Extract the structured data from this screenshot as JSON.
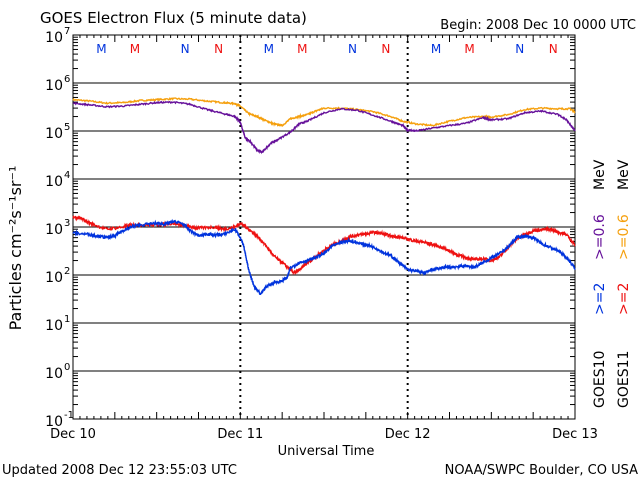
{
  "header": {
    "title": "GOES Electron Flux (5 minute data)",
    "begin": "Begin: 2008 Dec 10 0000 UTC"
  },
  "footer": {
    "updated": "Updated 2008 Dec 12 23:55:03 UTC",
    "credit": "NOAA/SWPC Boulder, CO USA"
  },
  "colors": {
    "goes10_high": "#0033dd",
    "goes10_low": "#66119a",
    "goes11_high": "#ee1111",
    "goes11_low": "#f5a00e",
    "marker_m": "#0033dd",
    "marker_m2": "#ee1111",
    "marker_n": "#0033dd",
    "marker_n2": "#ee1111"
  },
  "legend": {
    "goes10": "GOES10",
    "goes11": "GOES11",
    "g10_high": ">=2",
    "g10_low": ">=0.6",
    "g11_high": ">=2",
    "g11_low": ">=0.6",
    "unit": "MeV"
  },
  "markers": [
    {
      "day": 0.17,
      "label": "M",
      "color": "marker_m"
    },
    {
      "day": 0.37,
      "label": "M",
      "color": "marker_m2"
    },
    {
      "day": 0.67,
      "label": "N",
      "color": "marker_n"
    },
    {
      "day": 0.87,
      "label": "N",
      "color": "marker_n2"
    },
    {
      "day": 1.17,
      "label": "M",
      "color": "marker_m"
    },
    {
      "day": 1.37,
      "label": "M",
      "color": "marker_m2"
    },
    {
      "day": 1.67,
      "label": "N",
      "color": "marker_n"
    },
    {
      "day": 1.87,
      "label": "N",
      "color": "marker_n2"
    },
    {
      "day": 2.17,
      "label": "M",
      "color": "marker_m"
    },
    {
      "day": 2.37,
      "label": "M",
      "color": "marker_m2"
    },
    {
      "day": 2.67,
      "label": "N",
      "color": "marker_n"
    },
    {
      "day": 2.87,
      "label": "N",
      "color": "marker_n2"
    }
  ],
  "chart_data": {
    "type": "line",
    "title": "GOES Electron Flux (5 minute data)",
    "xlabel": "Universal Time",
    "ylabel": "Particles cm⁻²s⁻¹sr⁻¹",
    "y_scale": "log",
    "ylim": [
      0.1,
      10000000
    ],
    "xlim": [
      0,
      3
    ],
    "x_ticks": [
      {
        "day": 0,
        "label": "Dec 10"
      },
      {
        "day": 1,
        "label": "Dec 11"
      },
      {
        "day": 2,
        "label": "Dec 12"
      },
      {
        "day": 3,
        "label": "Dec 13"
      }
    ],
    "y_ticks": [
      {
        "value": 10000000,
        "base": "10",
        "exp": "7"
      },
      {
        "value": 1000000,
        "base": "10",
        "exp": "6"
      },
      {
        "value": 100000,
        "base": "10",
        "exp": "5"
      },
      {
        "value": 10000,
        "base": "10",
        "exp": "4"
      },
      {
        "value": 1000,
        "base": "10",
        "exp": "3"
      },
      {
        "value": 100,
        "base": "10",
        "exp": "2"
      },
      {
        "value": 10,
        "base": "10",
        "exp": "1"
      },
      {
        "value": 1,
        "base": "10",
        "exp": "0"
      },
      {
        "value": 0.1,
        "base": "10",
        "exp": "-1"
      }
    ],
    "threshold": 1000,
    "grid": "horizontal decade lines",
    "series": [
      {
        "name": "GOES11 >=0.6 MeV",
        "color_key": "goes11_low",
        "points": [
          [
            0,
            450000
          ],
          [
            0.1,
            420000
          ],
          [
            0.2,
            380000
          ],
          [
            0.3,
            390000
          ],
          [
            0.4,
            430000
          ],
          [
            0.5,
            450000
          ],
          [
            0.6,
            470000
          ],
          [
            0.7,
            460000
          ],
          [
            0.8,
            420000
          ],
          [
            0.9,
            390000
          ],
          [
            0.97,
            370000
          ],
          [
            1.0,
            330000
          ],
          [
            1.05,
            230000
          ],
          [
            1.1,
            200000
          ],
          [
            1.15,
            165000
          ],
          [
            1.2,
            140000
          ],
          [
            1.25,
            130000
          ],
          [
            1.3,
            180000
          ],
          [
            1.35,
            200000
          ],
          [
            1.4,
            220000
          ],
          [
            1.45,
            260000
          ],
          [
            1.5,
            300000
          ],
          [
            1.6,
            300000
          ],
          [
            1.7,
            280000
          ],
          [
            1.8,
            250000
          ],
          [
            1.9,
            200000
          ],
          [
            1.97,
            160000
          ],
          [
            2.05,
            140000
          ],
          [
            2.15,
            130000
          ],
          [
            2.25,
            160000
          ],
          [
            2.35,
            190000
          ],
          [
            2.45,
            200000
          ],
          [
            2.5,
            195000
          ],
          [
            2.6,
            220000
          ],
          [
            2.7,
            280000
          ],
          [
            2.8,
            300000
          ],
          [
            2.9,
            290000
          ],
          [
            2.97,
            290000
          ],
          [
            3.0,
            250000
          ]
        ]
      },
      {
        "name": "GOES10 >=0.6 MeV",
        "color_key": "goes10_low",
        "points": [
          [
            0,
            380000
          ],
          [
            0.1,
            350000
          ],
          [
            0.2,
            320000
          ],
          [
            0.3,
            330000
          ],
          [
            0.4,
            360000
          ],
          [
            0.5,
            390000
          ],
          [
            0.6,
            400000
          ],
          [
            0.7,
            360000
          ],
          [
            0.8,
            280000
          ],
          [
            0.9,
            230000
          ],
          [
            0.97,
            200000
          ],
          [
            1.0,
            150000
          ],
          [
            1.03,
            70000
          ],
          [
            1.06,
            60000
          ],
          [
            1.1,
            40000
          ],
          [
            1.13,
            36000
          ],
          [
            1.18,
            55000
          ],
          [
            1.22,
            65000
          ],
          [
            1.3,
            95000
          ],
          [
            1.35,
            140000
          ],
          [
            1.4,
            160000
          ],
          [
            1.5,
            240000
          ],
          [
            1.6,
            290000
          ],
          [
            1.7,
            270000
          ],
          [
            1.8,
            210000
          ],
          [
            1.9,
            160000
          ],
          [
            1.97,
            130000
          ],
          [
            2.0,
            105000
          ],
          [
            2.05,
            100000
          ],
          [
            2.15,
            115000
          ],
          [
            2.25,
            130000
          ],
          [
            2.35,
            145000
          ],
          [
            2.45,
            190000
          ],
          [
            2.5,
            170000
          ],
          [
            2.6,
            180000
          ],
          [
            2.7,
            240000
          ],
          [
            2.8,
            260000
          ],
          [
            2.9,
            220000
          ],
          [
            2.95,
            170000
          ],
          [
            3.0,
            100000
          ]
        ]
      },
      {
        "name": "GOES11 >=2 MeV",
        "color_key": "goes11_high",
        "points": [
          [
            0,
            1600
          ],
          [
            0.05,
            1500
          ],
          [
            0.1,
            1200
          ],
          [
            0.2,
            900
          ],
          [
            0.3,
            1000
          ],
          [
            0.35,
            1100
          ],
          [
            0.4,
            1100
          ],
          [
            0.5,
            1100
          ],
          [
            0.6,
            1200
          ],
          [
            0.65,
            1100
          ],
          [
            0.7,
            1000
          ],
          [
            0.75,
            950
          ],
          [
            0.85,
            1000
          ],
          [
            0.9,
            900
          ],
          [
            0.97,
            1000
          ],
          [
            1.0,
            1200
          ],
          [
            1.05,
            900
          ],
          [
            1.1,
            650
          ],
          [
            1.15,
            420
          ],
          [
            1.2,
            250
          ],
          [
            1.25,
            180
          ],
          [
            1.3,
            130
          ],
          [
            1.32,
            110
          ],
          [
            1.35,
            125
          ],
          [
            1.4,
            180
          ],
          [
            1.45,
            240
          ],
          [
            1.5,
            330
          ],
          [
            1.55,
            420
          ],
          [
            1.6,
            500
          ],
          [
            1.65,
            620
          ],
          [
            1.7,
            680
          ],
          [
            1.75,
            720
          ],
          [
            1.8,
            780
          ],
          [
            1.85,
            730
          ],
          [
            1.9,
            650
          ],
          [
            1.95,
            620
          ],
          [
            2.0,
            560
          ],
          [
            2.05,
            510
          ],
          [
            2.1,
            480
          ],
          [
            2.15,
            430
          ],
          [
            2.2,
            380
          ],
          [
            2.25,
            320
          ],
          [
            2.3,
            260
          ],
          [
            2.35,
            230
          ],
          [
            2.4,
            210
          ],
          [
            2.45,
            220
          ],
          [
            2.5,
            200
          ],
          [
            2.55,
            240
          ],
          [
            2.6,
            380
          ],
          [
            2.65,
            560
          ],
          [
            2.7,
            700
          ],
          [
            2.75,
            830
          ],
          [
            2.8,
            880
          ],
          [
            2.85,
            900
          ],
          [
            2.9,
            780
          ],
          [
            2.95,
            700
          ],
          [
            3.0,
            420
          ]
        ]
      },
      {
        "name": "GOES10 >=2 MeV",
        "color_key": "goes10_high",
        "points": [
          [
            0,
            750
          ],
          [
            0.1,
            700
          ],
          [
            0.15,
            650
          ],
          [
            0.2,
            600
          ],
          [
            0.25,
            650
          ],
          [
            0.3,
            850
          ],
          [
            0.35,
            1000
          ],
          [
            0.4,
            1100
          ],
          [
            0.5,
            1200
          ],
          [
            0.55,
            1150
          ],
          [
            0.6,
            1300
          ],
          [
            0.65,
            1200
          ],
          [
            0.7,
            850
          ],
          [
            0.75,
            650
          ],
          [
            0.8,
            720
          ],
          [
            0.85,
            680
          ],
          [
            0.9,
            700
          ],
          [
            0.97,
            900
          ],
          [
            1.0,
            600
          ],
          [
            1.02,
            400
          ],
          [
            1.05,
            130
          ],
          [
            1.08,
            60
          ],
          [
            1.12,
            40
          ],
          [
            1.15,
            55
          ],
          [
            1.2,
            70
          ],
          [
            1.25,
            75
          ],
          [
            1.28,
            90
          ],
          [
            1.3,
            140
          ],
          [
            1.35,
            180
          ],
          [
            1.4,
            200
          ],
          [
            1.45,
            230
          ],
          [
            1.5,
            280
          ],
          [
            1.55,
            400
          ],
          [
            1.6,
            480
          ],
          [
            1.65,
            520
          ],
          [
            1.7,
            470
          ],
          [
            1.75,
            430
          ],
          [
            1.8,
            380
          ],
          [
            1.85,
            300
          ],
          [
            1.9,
            250
          ],
          [
            1.95,
            180
          ],
          [
            2.0,
            130
          ],
          [
            2.05,
            120
          ],
          [
            2.1,
            110
          ],
          [
            2.15,
            130
          ],
          [
            2.2,
            140
          ],
          [
            2.25,
            145
          ],
          [
            2.3,
            150
          ],
          [
            2.35,
            155
          ],
          [
            2.4,
            145
          ],
          [
            2.45,
            180
          ],
          [
            2.5,
            230
          ],
          [
            2.55,
            280
          ],
          [
            2.6,
            380
          ],
          [
            2.65,
            600
          ],
          [
            2.7,
            650
          ],
          [
            2.75,
            600
          ],
          [
            2.8,
            450
          ],
          [
            2.85,
            380
          ],
          [
            2.9,
            320
          ],
          [
            2.95,
            230
          ],
          [
            3.0,
            140
          ]
        ]
      }
    ]
  }
}
